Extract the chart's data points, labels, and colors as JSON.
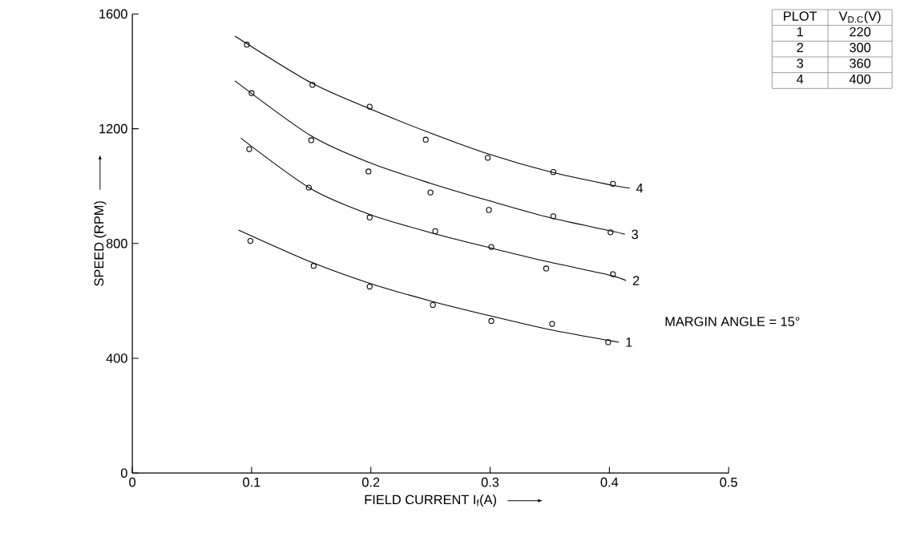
{
  "chart_data": {
    "type": "line",
    "xlabel": "FIELD CURRENT  I$_{f}$(A)",
    "ylabel": "SPEED  (RPM)",
    "xlim": [
      0,
      0.5
    ],
    "ylim": [
      0,
      1600
    ],
    "xticks": [
      0,
      0.1,
      0.2,
      0.3,
      0.4,
      0.5
    ],
    "yticks": [
      0,
      400,
      800,
      1200,
      1600
    ],
    "series": [
      {
        "type": "scatter",
        "marker": "circle",
        "color": "#000000",
        "x": [
          0.096,
          0.151,
          0.199,
          0.246,
          0.298,
          0.353,
          0.403
        ],
        "values": [
          1493,
          1353,
          1277,
          1162,
          1099,
          1049,
          1008
        ]
      },
      {
        "name": "4",
        "marker": "none",
        "color": "#000000",
        "x": [
          0.086,
          0.15,
          0.2,
          0.25,
          0.3,
          0.35,
          0.4,
          0.417
        ],
        "values": [
          1523,
          1360,
          1268,
          1185,
          1110,
          1050,
          1005,
          993
        ]
      },
      {
        "type": "scatter",
        "marker": "circle",
        "color": "#000000",
        "x": [
          0.1,
          0.15,
          0.198,
          0.25,
          0.299,
          0.353,
          0.401
        ],
        "values": [
          1324,
          1160,
          1051,
          978,
          917,
          895,
          839
        ]
      },
      {
        "name": "3",
        "marker": "none",
        "color": "#000000",
        "x": [
          0.086,
          0.15,
          0.2,
          0.25,
          0.3,
          0.35,
          0.4,
          0.413
        ],
        "values": [
          1367,
          1175,
          1080,
          1010,
          948,
          890,
          845,
          832
        ]
      },
      {
        "type": "scatter",
        "marker": "circle",
        "color": "#000000",
        "x": [
          0.098,
          0.148,
          0.199,
          0.254,
          0.301,
          0.347,
          0.403
        ],
        "values": [
          1129,
          995,
          891,
          843,
          788,
          713,
          693
        ]
      },
      {
        "name": "2",
        "marker": "none",
        "color": "#000000",
        "x": [
          0.091,
          0.15,
          0.2,
          0.25,
          0.3,
          0.35,
          0.4,
          0.414
        ],
        "values": [
          1167,
          990,
          900,
          838,
          785,
          735,
          690,
          671
        ]
      },
      {
        "type": "scatter",
        "marker": "circle",
        "color": "#000000",
        "x": [
          0.099,
          0.152,
          0.199,
          0.252,
          0.301,
          0.352,
          0.399
        ],
        "values": [
          809,
          722,
          650,
          586,
          530,
          520,
          456
        ]
      },
      {
        "name": "1",
        "marker": "none",
        "color": "#000000",
        "x": [
          0.089,
          0.15,
          0.2,
          0.25,
          0.3,
          0.35,
          0.4,
          0.408
        ],
        "values": [
          847,
          735,
          660,
          600,
          548,
          500,
          462,
          456
        ]
      }
    ],
    "annotations": [
      "PLOT",
      "V$_{D.C}$(V)",
      "1",
      "220",
      "2",
      "300",
      "3",
      "360",
      "4",
      "400",
      "MARGIN ANGLE = 15°"
    ]
  }
}
